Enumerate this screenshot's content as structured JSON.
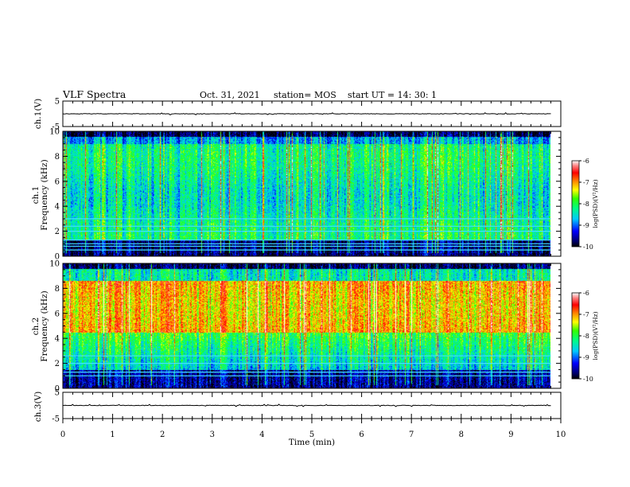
{
  "header": {
    "title": "VLF Spectra",
    "date": "Oct. 31, 2021",
    "station": "station= MOS",
    "start_ut": "start UT =   14: 30: 1"
  },
  "chart_data": [
    {
      "type": "line",
      "panel": "ch1-waveform",
      "ylabel": "ch.1(V)",
      "ylim": [
        -5,
        5
      ],
      "yticks": [
        "5",
        "-5"
      ],
      "x_range_min": [
        0,
        10
      ],
      "data_extent_min": [
        0,
        9.8
      ],
      "baseline_value": 0
    },
    {
      "type": "heatmap",
      "panel": "ch1-spectrogram",
      "ylabel": "ch.1\nFrequency (kHz)",
      "ylabel_line1": "ch.1",
      "ylabel_line2": "Frequency (kHz)",
      "ylim": [
        0,
        10
      ],
      "yticks": [
        "0",
        "2",
        "4",
        "6",
        "8",
        "10"
      ],
      "xlim": [
        0,
        10
      ],
      "data_extent_min": [
        0,
        9.8
      ],
      "colorbar": {
        "label": "log(PSD)(V²/Hz)",
        "range": [
          -10,
          -6
        ],
        "ticks": [
          "-6",
          "-7",
          "-8",
          "-9",
          "-10"
        ]
      },
      "horizontal_lines_khz": [
        0.5,
        0.8,
        1.0,
        1.3,
        2.0,
        2.4,
        3.0
      ]
    },
    {
      "type": "heatmap",
      "panel": "ch2-spectrogram",
      "ylabel": "ch.2\nFrequency (kHz)",
      "ylabel_line1": "ch.2",
      "ylabel_line2": "Frequency (kHz)",
      "ylim": [
        0,
        10
      ],
      "yticks": [
        "0",
        "2",
        "4",
        "6",
        "8",
        "10"
      ],
      "xlim": [
        0,
        10
      ],
      "data_extent_min": [
        0,
        9.8
      ],
      "colorbar": {
        "label": "log(PSD)(V²/Hz)",
        "range": [
          -10,
          -6
        ],
        "ticks": [
          "-6",
          "-7",
          "-8",
          "-9",
          "-10"
        ]
      },
      "horizontal_lines_khz": [
        1.0,
        1.3,
        2.0,
        2.6
      ]
    },
    {
      "type": "line",
      "panel": "ch3-waveform",
      "ylabel": "ch.3(V)",
      "ylim": [
        -5,
        5
      ],
      "yticks": [
        "5",
        "-5"
      ],
      "xlim": [
        0,
        10
      ],
      "data_extent_min": [
        0,
        9.8
      ],
      "baseline_value": 0
    }
  ],
  "x_axis": {
    "label": "Time  (min)",
    "ticks": [
      "0",
      "1",
      "2",
      "3",
      "4",
      "5",
      "6",
      "7",
      "8",
      "9",
      "10"
    ]
  }
}
